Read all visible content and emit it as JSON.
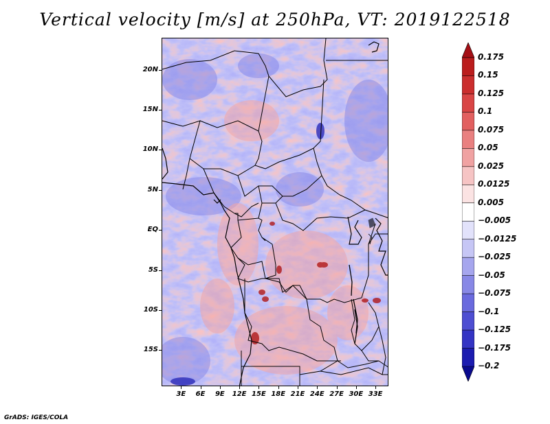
{
  "title": "Vertical velocity [m/s] at 250hPa, VT: 2019122518",
  "credit": "GrADS: IGES/COLA",
  "map": {
    "lon_range": [
      0,
      35
    ],
    "lat_range": [
      -19.5,
      24
    ],
    "lat_labels": [
      {
        "text": "20N",
        "lat": 20
      },
      {
        "text": "15N",
        "lat": 15
      },
      {
        "text": "10N",
        "lat": 10
      },
      {
        "text": "5N",
        "lat": 5
      },
      {
        "text": "EQ",
        "lat": 0
      },
      {
        "text": "5S",
        "lat": -5
      },
      {
        "text": "10S",
        "lat": -10
      },
      {
        "text": "15S",
        "lat": -15
      }
    ],
    "lon_labels": [
      {
        "text": "3E",
        "lon": 3
      },
      {
        "text": "6E",
        "lon": 6
      },
      {
        "text": "9E",
        "lon": 9
      },
      {
        "text": "12E",
        "lon": 12
      },
      {
        "text": "15E",
        "lon": 15
      },
      {
        "text": "18E",
        "lon": 18
      },
      {
        "text": "21E",
        "lon": 21
      },
      {
        "text": "24E",
        "lon": 24
      },
      {
        "text": "27E",
        "lon": 27
      },
      {
        "text": "30E",
        "lon": 30
      },
      {
        "text": "33E",
        "lon": 33
      }
    ]
  },
  "colorbar": {
    "labels": [
      "0.175",
      "0.15",
      "0.125",
      "0.1",
      "0.075",
      "0.05",
      "0.025",
      "0.0125",
      "0.005",
      "-0.005",
      "-0.0125",
      "-0.025",
      "-0.05",
      "-0.075",
      "-0.1",
      "-0.125",
      "-0.175",
      "-0.2"
    ],
    "colors": [
      "#a50f15",
      "#bb1d1d",
      "#cb2e2e",
      "#d94545",
      "#e26060",
      "#e98080",
      "#f0a2a2",
      "#f6c4c4",
      "#fbe3e3",
      "#ffffff",
      "#e2e2fb",
      "#c6c6f5",
      "#a6a6ee",
      "#8888e6",
      "#6a6ade",
      "#4e4ed2",
      "#3434c4",
      "#1c1cb0",
      "#0a0a8e"
    ]
  }
}
